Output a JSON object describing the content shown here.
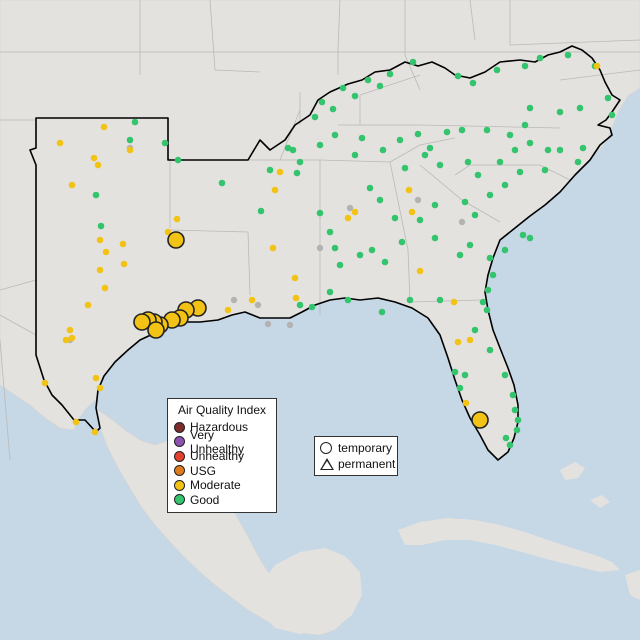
{
  "legend": {
    "title": "Air Quality Index",
    "categories": [
      {
        "label": "Hazardous",
        "color": "#7e2b2b"
      },
      {
        "label": "Very Unhealthy",
        "color": "#8e52b0"
      },
      {
        "label": "Unhealthy",
        "color": "#e2412f"
      },
      {
        "label": "USG",
        "color": "#e07a1e"
      },
      {
        "label": "Moderate",
        "color": "#f2c314"
      },
      {
        "label": "Good",
        "color": "#35c46e"
      }
    ]
  },
  "shape_legend": {
    "temporary": "temporary",
    "permanent": "permanent"
  },
  "colors": {
    "water": "#c6d7e6",
    "land": "#e4e2df",
    "region_outline": "#000000",
    "state_border": "#b9b9b9",
    "no_data_marker": "#b3b3b3"
  }
}
